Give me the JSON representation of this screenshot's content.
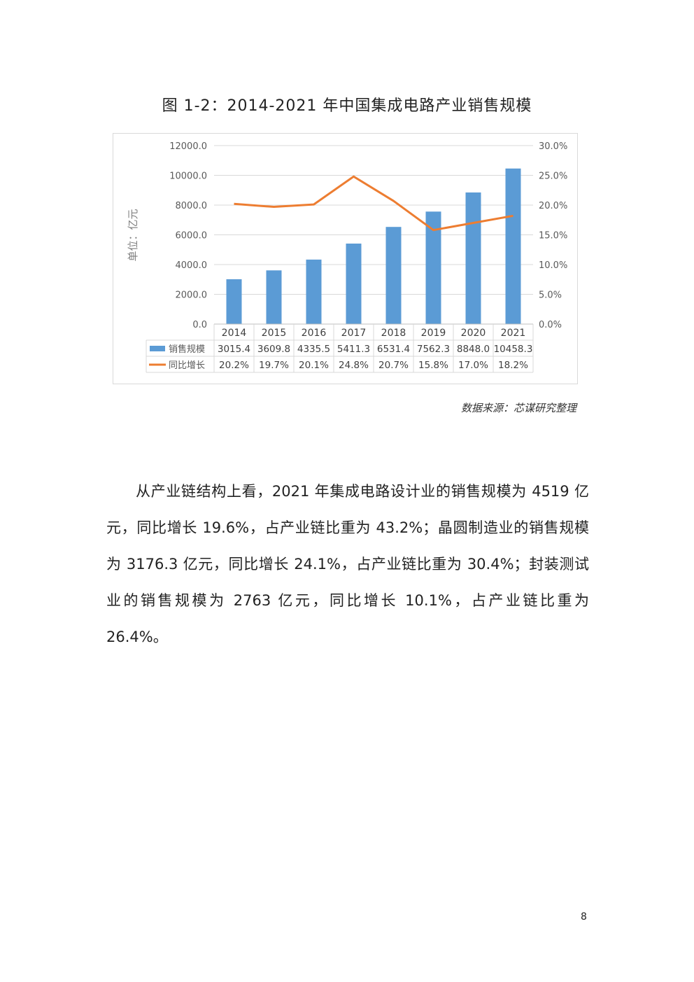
{
  "figure": {
    "title": "图 1-2：2014-2021 年中国集成电路产业销售规模",
    "source": "数据来源：芯谋研究整理"
  },
  "chart_data": {
    "type": "bar",
    "categories": [
      "2014",
      "2015",
      "2016",
      "2017",
      "2018",
      "2019",
      "2020",
      "2021"
    ],
    "series": [
      {
        "name": "销售规模",
        "type": "bar",
        "axis": "left",
        "color": "#5b9bd5",
        "values": [
          3015.4,
          3609.8,
          4335.5,
          5411.3,
          6531.4,
          7562.3,
          8848.0,
          10458.3
        ],
        "labels": [
          "3015.4",
          "3609.8",
          "4335.5",
          "5411.3",
          "6531.4",
          "7562.3",
          "8848.0",
          "10458.3"
        ]
      },
      {
        "name": "同比增长",
        "type": "line",
        "axis": "right",
        "color": "#ed7d31",
        "values": [
          20.2,
          19.7,
          20.1,
          24.8,
          20.7,
          15.8,
          17.0,
          18.2
        ],
        "labels": [
          "20.2%",
          "19.7%",
          "20.1%",
          "24.8%",
          "20.7%",
          "15.8%",
          "17.0%",
          "18.2%"
        ]
      }
    ],
    "ylabel": "单位：亿元",
    "ylim": [
      0,
      12000
    ],
    "y2lim": [
      0,
      30
    ],
    "yticks": [
      "0.0",
      "2000.0",
      "4000.0",
      "6000.0",
      "8000.0",
      "10000.0",
      "12000.0"
    ],
    "y2ticks": [
      "0.0%",
      "5.0%",
      "10.0%",
      "15.0%",
      "20.0%",
      "25.0%",
      "30.0%"
    ],
    "grid": true,
    "legend": "data-table"
  },
  "body": {
    "paragraph": "从产业链结构上看，2021 年集成电路设计业的销售规模为 4519 亿元，同比增长 19.6%，占产业链比重为 43.2%；晶圆制造业的销售规模为 3176.3 亿元，同比增长 24.1%，占产业链比重为 30.4%；封装测试业的销售规模为 2763 亿元，同比增长 10.1%，占产业链比重为 26.4%。"
  },
  "page_number": "8"
}
